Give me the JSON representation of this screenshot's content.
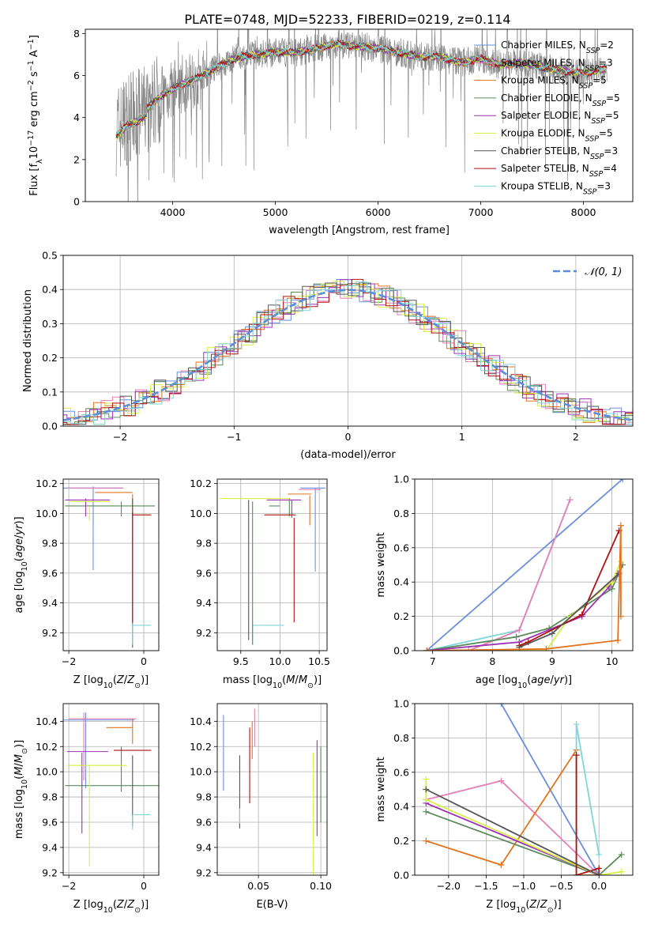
{
  "figure_title": "PLATE=0748, MJD=52233, FIBERID=0219, z=0.114",
  "palette": {
    "chabrier_miles": "#6a8fdc",
    "salpeter_miles": "#e47fb8",
    "kroupa_miles": "#e3731c",
    "chabrier_elodie": "#5a8a5a",
    "salpeter_elodie": "#9b33b3",
    "kroupa_elodie": "#d8ef45",
    "chabrier_stelib": "#555555",
    "salpeter_stelib": "#b01010",
    "kroupa_stelib": "#7fd6d6",
    "data": "#888888",
    "normal": "#5b8ed8",
    "grid": "#b0b0b0"
  },
  "chart_data": [
    {
      "panel": "spectrum",
      "type": "line",
      "xlabel": "wavelength [Angstrom, rest frame]",
      "ylabel": "Flux [f_λ 10^-17 erg cm^-2 s^-1 A^-1]",
      "xlim": [
        3150,
        8480
      ],
      "ylim": [
        0,
        8.2
      ],
      "xticks": [
        4000,
        5000,
        6000,
        7000,
        8000
      ],
      "yticks": [
        0,
        2,
        4,
        6,
        8
      ],
      "grid": false,
      "legend_position": "top-right",
      "continuum": {
        "x": [
          3450,
          3550,
          3650,
          3750,
          3850,
          3950,
          4050,
          4200,
          4400,
          4600,
          4800,
          5000,
          5200,
          5400,
          5600,
          5800,
          6000,
          6200,
          6400,
          6600,
          6800,
          7000,
          7200,
          7400,
          7600,
          7800,
          8000,
          8200
        ],
        "y": [
          3.4,
          3.9,
          4.1,
          4.4,
          4.9,
          5.2,
          5.5,
          5.8,
          6.3,
          6.8,
          7.0,
          7.1,
          7.1,
          7.3,
          7.5,
          7.4,
          7.3,
          7.1,
          6.9,
          6.9,
          6.6,
          6.8,
          6.5,
          6.6,
          6.4,
          6.2,
          6.1,
          6.3
        ]
      },
      "series": [
        {
          "key": "chabrier_miles",
          "legend": "Chabrier MILES, N",
          "n_ssp": "=2"
        },
        {
          "key": "salpeter_miles",
          "legend": "Salpeter MILES, N",
          "n_ssp": "=3"
        },
        {
          "key": "kroupa_miles",
          "legend": "Kroupa MILES, N",
          "n_ssp": "=5"
        },
        {
          "key": "chabrier_elodie",
          "legend": "Chabrier ELODIE, N",
          "n_ssp": "=5"
        },
        {
          "key": "salpeter_elodie",
          "legend": "Salpeter ELODIE, N",
          "n_ssp": "=5"
        },
        {
          "key": "kroupa_elodie",
          "legend": "Kroupa ELODIE, N",
          "n_ssp": "=5"
        },
        {
          "key": "chabrier_stelib",
          "legend": "Chabrier STELIB, N",
          "n_ssp": "=3"
        },
        {
          "key": "salpeter_stelib",
          "legend": "Salpeter STELIB, N",
          "n_ssp": "=4"
        },
        {
          "key": "kroupa_stelib",
          "legend": "Kroupa STELIB, N",
          "n_ssp": "=3"
        }
      ],
      "legend_subscript": "SSP"
    },
    {
      "panel": "residuals",
      "type": "line",
      "xlabel": "(data-model)/error",
      "ylabel": "Normed distribution",
      "xlim": [
        -2.5,
        2.5
      ],
      "ylim": [
        0,
        0.5
      ],
      "xticks": [
        -2,
        -1,
        0,
        1,
        2
      ],
      "yticks": [
        0.0,
        0.1,
        0.2,
        0.3,
        0.4,
        0.5
      ],
      "grid": true,
      "legend_position": "top-right",
      "normal_label": "𝒩(0, 1)"
    },
    {
      "panel": "age_vs_Z",
      "type": "scatter",
      "xlabel": "Z [log10(Z/Z⊙)]",
      "ylabel": "age  [log10(age/yr)]",
      "xlim": [
        -2.15,
        0.4
      ],
      "ylim": [
        9.08,
        10.23
      ],
      "xticks": [
        -2,
        0
      ],
      "yticks": [
        9.2,
        9.4,
        9.6,
        9.8,
        10.0,
        10.2
      ],
      "grid": true,
      "bars": [
        {
          "key": "chabrier_miles",
          "x": -1.35,
          "y": 10.17,
          "xerr": 0.8,
          "yerr": 0
        },
        {
          "key": "chabrier_miles",
          "x": -1.35,
          "y": 9.9,
          "xerr": 0,
          "yerr": 0.28
        },
        {
          "key": "salpeter_miles",
          "x": -1.3,
          "y": 10.17,
          "xerr": 0.75,
          "yerr": 0
        },
        {
          "key": "kroupa_miles",
          "x": -0.8,
          "y": 10.14,
          "xerr": 0.5,
          "yerr": 0
        },
        {
          "key": "kroupa_miles",
          "x": -0.3,
          "y": 10.05,
          "xerr": 0,
          "yerr": 0.08
        },
        {
          "key": "chabrier_elodie",
          "x": -0.9,
          "y": 10.05,
          "xerr": 1.2,
          "yerr": 0
        },
        {
          "key": "chabrier_elodie",
          "x": -0.6,
          "y": 10.03,
          "xerr": 0,
          "yerr": 0.05
        },
        {
          "key": "salpeter_elodie",
          "x": -1.5,
          "y": 10.09,
          "xerr": 0.6,
          "yerr": 0
        },
        {
          "key": "salpeter_elodie",
          "x": -1.55,
          "y": 10.04,
          "xerr": 0,
          "yerr": 0.06
        },
        {
          "key": "kroupa_elodie",
          "x": -1.45,
          "y": 10.08,
          "xerr": 0.55,
          "yerr": 0
        },
        {
          "key": "kroupa_elodie",
          "x": -1.45,
          "y": 10.0,
          "xerr": 0,
          "yerr": 0.05
        },
        {
          "key": "chabrier_stelib",
          "x": -0.3,
          "y": 9.6,
          "xerr": 0,
          "yerr": 0.5
        },
        {
          "key": "salpeter_stelib",
          "x": -0.05,
          "y": 9.99,
          "xerr": 0.25,
          "yerr": 0
        },
        {
          "key": "salpeter_stelib",
          "x": -0.3,
          "y": 9.64,
          "xerr": 0,
          "yerr": 0.37
        },
        {
          "key": "kroupa_stelib",
          "x": -0.05,
          "y": 9.25,
          "xerr": 0.25,
          "yerr": 0
        },
        {
          "key": "kroupa_stelib",
          "x": -0.3,
          "y": 9.19,
          "xerr": 0,
          "yerr": 0.07
        }
      ]
    },
    {
      "panel": "age_vs_mass",
      "type": "scatter",
      "xlabel": "mass [log10(M/M⊙)]",
      "xlim": [
        9.2,
        10.6
      ],
      "ylim": [
        9.08,
        10.23
      ],
      "xticks": [
        9.5,
        10.0,
        10.5
      ],
      "yticks": [
        9.2,
        9.4,
        9.6,
        9.8,
        10.0,
        10.2
      ],
      "grid": true,
      "bars": [
        {
          "key": "chabrier_miles",
          "x": 10.42,
          "y": 10.17,
          "xerr": 0.16,
          "yerr": 0
        },
        {
          "key": "chabrier_miles",
          "x": 10.45,
          "y": 9.89,
          "xerr": 0,
          "yerr": 0.28
        },
        {
          "key": "salpeter_miles",
          "x": 10.38,
          "y": 10.16,
          "xerr": 0.14,
          "yerr": 0
        },
        {
          "key": "kroupa_miles",
          "x": 10.25,
          "y": 10.13,
          "xerr": 0.15,
          "yerr": 0
        },
        {
          "key": "kroupa_miles",
          "x": 10.38,
          "y": 10.02,
          "xerr": 0,
          "yerr": 0.1
        },
        {
          "key": "chabrier_elodie",
          "x": 9.93,
          "y": 10.05,
          "xerr": 0.07,
          "yerr": 0
        },
        {
          "key": "chabrier_elodie",
          "x": 10.12,
          "y": 10.04,
          "xerr": 0,
          "yerr": 0.06
        },
        {
          "key": "salpeter_elodie",
          "x": 10.05,
          "y": 10.09,
          "xerr": 0.22,
          "yerr": 0
        },
        {
          "key": "salpeter_elodie",
          "x": 10.15,
          "y": 10.03,
          "xerr": 0,
          "yerr": 0.06
        },
        {
          "key": "kroupa_elodie",
          "x": 9.68,
          "y": 10.1,
          "xerr": 0.45,
          "yerr": 0
        },
        {
          "key": "chabrier_stelib",
          "x": 9.6,
          "y": 9.62,
          "xerr": 0,
          "yerr": 0.47
        },
        {
          "key": "salpeter_stelib",
          "x": 10.0,
          "y": 9.99,
          "xerr": 0.2,
          "yerr": 0
        },
        {
          "key": "salpeter_stelib",
          "x": 10.18,
          "y": 9.62,
          "xerr": 0,
          "yerr": 0.35
        },
        {
          "key": "kroupa_stelib",
          "x": 9.85,
          "y": 9.25,
          "xerr": 0.2,
          "yerr": 0
        },
        {
          "key": "kroupa_stelib",
          "x": 9.65,
          "y": 9.2,
          "xerr": 0,
          "yerr": 0.08
        },
        {
          "key": "chabrier_elodie",
          "x": 9.65,
          "y": 9.6,
          "xerr": 0,
          "yerr": 0.48
        }
      ]
    },
    {
      "panel": "mass_weight_vs_age",
      "type": "line",
      "xlabel": "age  [log10(age/yr)]",
      "ylabel": "mass weight",
      "xlim": [
        6.7,
        10.35
      ],
      "ylim": [
        0,
        1.0
      ],
      "xticks": [
        7,
        8,
        9,
        10
      ],
      "yticks": [
        0.0,
        0.2,
        0.4,
        0.6,
        0.8,
        1.0
      ],
      "grid": true,
      "series": [
        {
          "key": "chabrier_miles",
          "x": [
            6.9,
            10.18
          ],
          "y": [
            0.0,
            1.0
          ]
        },
        {
          "key": "kroupa_stelib",
          "x": [
            6.9,
            8.45,
            9.3
          ],
          "y": [
            0.0,
            0.12,
            0.88
          ]
        },
        {
          "key": "salpeter_miles",
          "x": [
            7.6,
            8.45,
            9.3
          ],
          "y": [
            0.0,
            0.12,
            0.88
          ]
        },
        {
          "key": "chabrier_elodie",
          "x": [
            6.9,
            8.4,
            8.95,
            10.0,
            10.18
          ],
          "y": [
            0.0,
            0.08,
            0.13,
            0.36,
            0.5
          ]
        },
        {
          "key": "salpeter_elodie",
          "x": [
            6.9,
            8.45,
            9.5,
            9.95,
            10.1
          ],
          "y": [
            0.0,
            0.05,
            0.2,
            0.37,
            0.45
          ]
        },
        {
          "key": "kroupa_elodie",
          "x": [
            6.9,
            8.9,
            9.3,
            10.0,
            10.15
          ],
          "y": [
            0.0,
            0.0,
            0.2,
            0.4,
            0.52
          ]
        },
        {
          "key": "salpeter_stelib",
          "x": [
            8.45,
            8.6,
            9.5,
            10.12
          ],
          "y": [
            0.03,
            0.05,
            0.21,
            0.7
          ]
        },
        {
          "key": "chabrier_stelib",
          "x": [
            8.45,
            9.0,
            10.12
          ],
          "y": [
            0.02,
            0.1,
            0.45
          ]
        },
        {
          "key": "kroupa_miles",
          "x": [
            6.9,
            8.9,
            10.1,
            10.15,
            10.15
          ],
          "y": [
            0.0,
            0.01,
            0.06,
            0.73,
            0.2
          ]
        }
      ]
    },
    {
      "panel": "mass_vs_Z",
      "type": "scatter",
      "xlabel": "Z [log10(Z/Z⊙)]",
      "ylabel": "mass [log10(M/M⊙)]",
      "xlim": [
        -2.15,
        0.4
      ],
      "ylim": [
        9.18,
        10.54
      ],
      "xticks": [
        -2,
        0
      ],
      "yticks": [
        9.2,
        9.4,
        9.6,
        9.8,
        10.0,
        10.2,
        10.4
      ],
      "grid": true,
      "bars": [
        {
          "key": "chabrier_miles",
          "x": -1.2,
          "y": 10.41,
          "xerr": 0.95,
          "yerr": 0
        },
        {
          "key": "chabrier_miles",
          "x": -1.55,
          "y": 10.17,
          "xerr": 0,
          "yerr": 0.3
        },
        {
          "key": "salpeter_miles",
          "x": -1.1,
          "y": 10.42,
          "xerr": 0.9,
          "yerr": 0
        },
        {
          "key": "salpeter_miles",
          "x": -1.6,
          "y": 10.2,
          "xerr": 0,
          "yerr": 0.27
        },
        {
          "key": "kroupa_miles",
          "x": -0.65,
          "y": 10.35,
          "xerr": 0.35,
          "yerr": 0
        },
        {
          "key": "kroupa_miles",
          "x": -0.3,
          "y": 10.32,
          "xerr": 0,
          "yerr": 0.1
        },
        {
          "key": "chabrier_elodie",
          "x": -0.85,
          "y": 9.89,
          "xerr": 1.25,
          "yerr": 0
        },
        {
          "key": "chabrier_elodie",
          "x": -0.6,
          "y": 10.02,
          "xerr": 0,
          "yerr": 0.18
        },
        {
          "key": "salpeter_elodie",
          "x": -1.5,
          "y": 10.16,
          "xerr": 0.55,
          "yerr": 0
        },
        {
          "key": "salpeter_elodie",
          "x": -1.65,
          "y": 9.83,
          "xerr": 0,
          "yerr": 0.32
        },
        {
          "key": "kroupa_elodie",
          "x": -1.25,
          "y": 10.05,
          "xerr": 0.8,
          "yerr": 0
        },
        {
          "key": "kroupa_elodie",
          "x": -1.45,
          "y": 9.65,
          "xerr": 0,
          "yerr": 0.4
        },
        {
          "key": "salpeter_stelib",
          "x": -0.3,
          "y": 10.17,
          "xerr": 0.5,
          "yerr": 0
        },
        {
          "key": "chabrier_stelib",
          "x": -0.3,
          "y": 9.85,
          "xerr": 0,
          "yerr": 0.28
        },
        {
          "key": "kroupa_stelib",
          "x": -0.05,
          "y": 9.66,
          "xerr": 0.22,
          "yerr": 0
        },
        {
          "key": "kroupa_stelib",
          "x": -0.3,
          "y": 9.6,
          "xerr": 0,
          "yerr": 0.06
        }
      ]
    },
    {
      "panel": "mass_vs_ebv",
      "type": "scatter",
      "xlabel": "E(B-V)",
      "xlim": [
        0.017,
        0.105
      ],
      "ylim": [
        9.18,
        10.54
      ],
      "xticks": [
        0.05,
        0.1
      ],
      "yticks": [
        9.2,
        9.4,
        9.6,
        9.8,
        10.0,
        10.2,
        10.4
      ],
      "grid": true,
      "bars": [
        {
          "key": "chabrier_miles",
          "x": 0.022,
          "y": 10.15,
          "xerr": 0,
          "yerr": 0.3
        },
        {
          "key": "salpeter_miles",
          "x": 0.047,
          "y": 10.35,
          "xerr": 0,
          "yerr": 0.15
        },
        {
          "key": "kroupa_miles",
          "x": 0.045,
          "y": 10.25,
          "xerr": 0,
          "yerr": 0.15
        },
        {
          "key": "chabrier_elodie",
          "x": 0.1,
          "y": 9.9,
          "xerr": 0,
          "yerr": 0.3
        },
        {
          "key": "salpeter_elodie",
          "x": 0.097,
          "y": 9.87,
          "xerr": 0,
          "yerr": 0.38
        },
        {
          "key": "kroupa_elodie",
          "x": 0.094,
          "y": 9.62,
          "xerr": 0,
          "yerr": 0.53
        },
        {
          "key": "salpeter_stelib",
          "x": 0.043,
          "y": 10.05,
          "xerr": 0,
          "yerr": 0.3
        },
        {
          "key": "chabrier_stelib",
          "x": 0.035,
          "y": 9.84,
          "xerr": 0,
          "yerr": 0.29
        },
        {
          "key": "kroupa_stelib",
          "x": 0.035,
          "y": 9.65,
          "xerr": 0,
          "yerr": 0.06
        }
      ]
    },
    {
      "panel": "mass_weight_vs_Z",
      "type": "line",
      "xlabel": "Z [log10(Z/Z⊙)]",
      "ylabel": "mass weight",
      "xlim": [
        -2.45,
        0.45
      ],
      "ylim": [
        0,
        1.0
      ],
      "xticks": [
        -2.0,
        -1.5,
        -1.0,
        -0.5,
        0.0
      ],
      "yticks": [
        0.0,
        0.2,
        0.4,
        0.6,
        0.8,
        1.0
      ],
      "grid": true,
      "series": [
        {
          "key": "chabrier_miles",
          "x": [
            -1.3,
            0.0
          ],
          "y": [
            1.0,
            0.0
          ]
        },
        {
          "key": "salpeter_miles",
          "x": [
            -2.3,
            -1.3,
            0.0
          ],
          "y": [
            0.44,
            0.55,
            0.0
          ]
        },
        {
          "key": "kroupa_miles",
          "x": [
            -2.3,
            -1.3,
            -0.3,
            -0.3,
            0.0
          ],
          "y": [
            0.2,
            0.06,
            0.73,
            0.0,
            0.0
          ]
        },
        {
          "key": "kroupa_stelib",
          "x": [
            -0.3,
            -0.3,
            0.0
          ],
          "y": [
            0.0,
            0.88,
            0.12
          ]
        },
        {
          "key": "chabrier_elodie",
          "x": [
            -2.3,
            0.0,
            0.3
          ],
          "y": [
            0.37,
            0.0,
            0.12
          ]
        },
        {
          "key": "salpeter_elodie",
          "x": [
            -2.3,
            0.0
          ],
          "y": [
            0.42,
            0.0
          ]
        },
        {
          "key": "kroupa_elodie",
          "x": [
            -2.3,
            -2.3,
            0.0,
            0.3
          ],
          "y": [
            0.56,
            0.44,
            0.0,
            0.02
          ]
        },
        {
          "key": "salpeter_stelib",
          "x": [
            -0.3,
            -0.3,
            0.0,
            0.0
          ],
          "y": [
            0.7,
            0.0,
            0.04,
            0.0
          ]
        },
        {
          "key": "chabrier_stelib",
          "x": [
            -2.3,
            0.0
          ],
          "y": [
            0.5,
            0.0
          ]
        }
      ]
    }
  ]
}
